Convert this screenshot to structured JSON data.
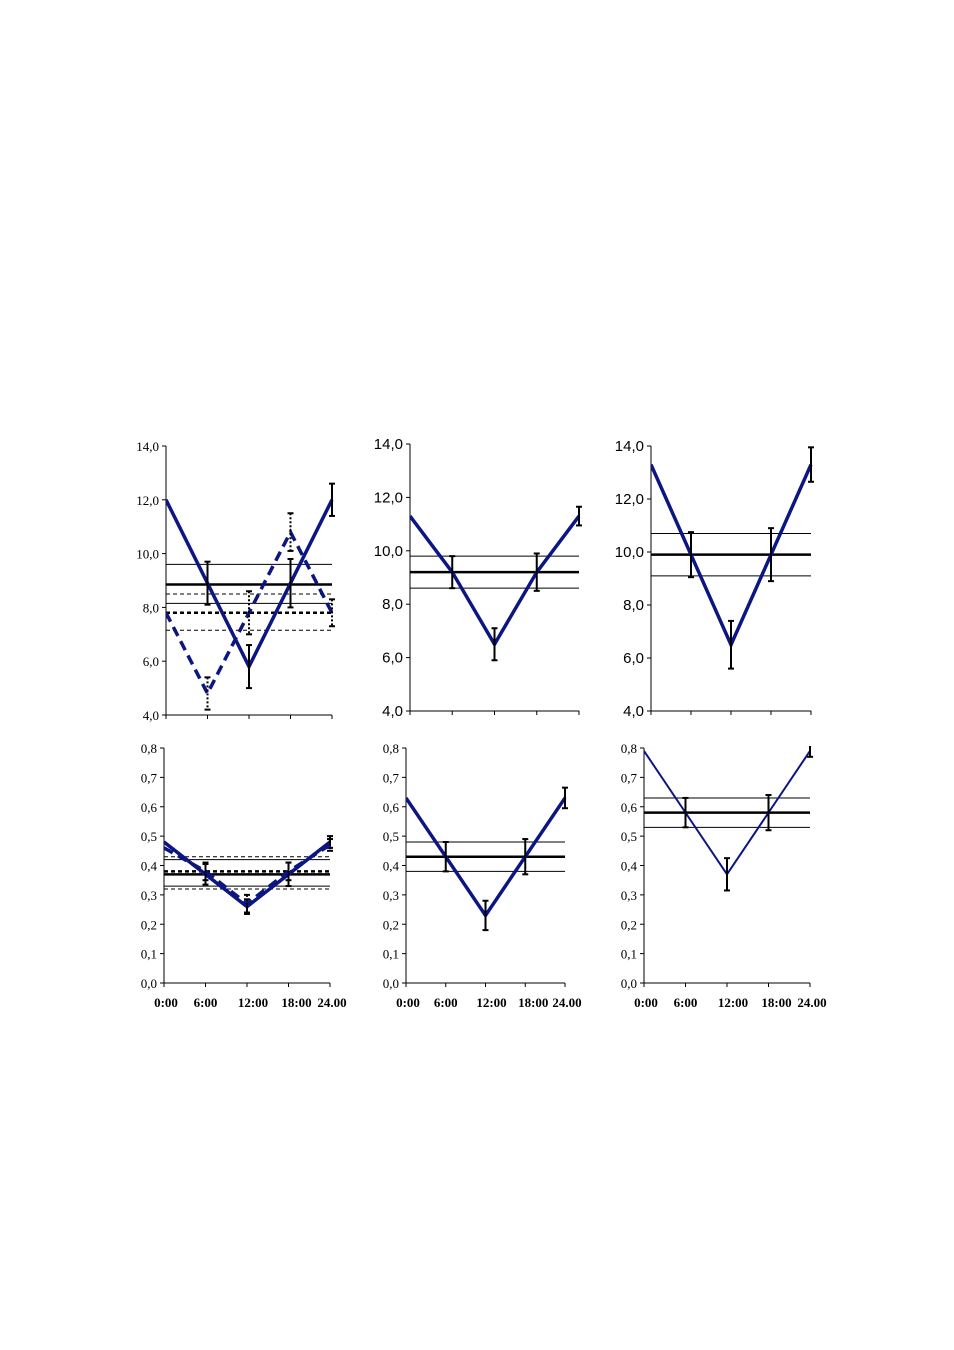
{
  "colors": {
    "series": "#0c1682",
    "reference": "#000000"
  },
  "x_tick_labels": [
    "0:00",
    "6:00",
    "12:00",
    "18:00",
    "24.00"
  ],
  "chart_data": [
    {
      "type": "line",
      "x": [
        0,
        6,
        12,
        18,
        24
      ],
      "ylim": [
        4,
        14
      ],
      "y_ticks": [
        "4,0",
        "6,0",
        "8,0",
        "10,0",
        "12,0",
        "14,0"
      ],
      "series": [
        {
          "style": "solid",
          "values": [
            12.0,
            8.9,
            5.8,
            8.9,
            12.0
          ],
          "error": [
            null,
            0.8,
            0.8,
            0.9,
            0.6
          ]
        },
        {
          "style": "dashed",
          "values": [
            7.8,
            4.8,
            7.8,
            10.8,
            7.8
          ],
          "error": [
            null,
            0.6,
            0.8,
            0.7,
            0.5
          ]
        }
      ],
      "reference_lines": [
        {
          "style": "solid",
          "mesor": 8.85,
          "band": [
            8.15,
            9.6
          ]
        },
        {
          "style": "dashed",
          "mesor": 7.8,
          "band": [
            7.15,
            8.5
          ]
        }
      ]
    },
    {
      "type": "line",
      "x": [
        0,
        6,
        12,
        18,
        24
      ],
      "ylim": [
        4,
        14
      ],
      "y_ticks": [
        "4,0",
        "6,0",
        "8,0",
        "10,0",
        "12,0",
        "14,0"
      ],
      "series": [
        {
          "style": "solid",
          "values": [
            11.3,
            9.2,
            6.5,
            9.2,
            11.3
          ],
          "error": [
            null,
            0.6,
            0.6,
            0.7,
            0.35
          ]
        }
      ],
      "reference_lines": [
        {
          "style": "solid",
          "mesor": 9.2,
          "band": [
            8.6,
            9.8
          ]
        }
      ]
    },
    {
      "type": "line",
      "x": [
        0,
        6,
        12,
        18,
        24
      ],
      "ylim": [
        4,
        14
      ],
      "y_ticks": [
        "4,0",
        "6,0",
        "8,0",
        "10,0",
        "12,0",
        "14,0"
      ],
      "series": [
        {
          "style": "solid",
          "values": [
            13.3,
            9.9,
            6.5,
            9.9,
            13.3
          ],
          "error": [
            null,
            0.85,
            0.9,
            1.0,
            0.65
          ]
        }
      ],
      "reference_lines": [
        {
          "style": "solid",
          "mesor": 9.9,
          "band": [
            9.1,
            10.7
          ]
        }
      ]
    },
    {
      "type": "line",
      "x": [
        0,
        6,
        12,
        18,
        24
      ],
      "ylim": [
        0,
        0.8
      ],
      "y_ticks": [
        "0,0",
        "0,1",
        "0,2",
        "0,3",
        "0,4",
        "0,5",
        "0,6",
        "0,7",
        "0,8"
      ],
      "series": [
        {
          "style": "solid",
          "values": [
            0.48,
            0.37,
            0.26,
            0.37,
            0.48
          ],
          "error": [
            null,
            0.035,
            0.025,
            0.04,
            0.02
          ]
        },
        {
          "style": "dashed",
          "values": [
            0.46,
            0.38,
            0.27,
            0.38,
            0.47
          ],
          "error": [
            null,
            0.03,
            0.03,
            0.03,
            0.02
          ]
        }
      ],
      "reference_lines": [
        {
          "style": "solid",
          "mesor": 0.37,
          "band": [
            0.33,
            0.42
          ]
        },
        {
          "style": "dashed",
          "mesor": 0.38,
          "band": [
            0.32,
            0.43
          ]
        }
      ]
    },
    {
      "type": "line",
      "x": [
        0,
        6,
        12,
        18,
        24
      ],
      "ylim": [
        0,
        0.8
      ],
      "y_ticks": [
        "0,0",
        "0,1",
        "0,2",
        "0,3",
        "0,4",
        "0,5",
        "0,6",
        "0,7",
        "0,8"
      ],
      "series": [
        {
          "style": "solid",
          "values": [
            0.63,
            0.43,
            0.23,
            0.43,
            0.63
          ],
          "error": [
            null,
            0.05,
            0.05,
            0.06,
            0.035
          ]
        }
      ],
      "reference_lines": [
        {
          "style": "solid",
          "mesor": 0.43,
          "band": [
            0.38,
            0.48
          ]
        }
      ]
    },
    {
      "type": "line",
      "x": [
        0,
        6,
        12,
        18,
        24
      ],
      "ylim": [
        0,
        0.8
      ],
      "y_ticks": [
        "0,0",
        "0,1",
        "0,2",
        "0,3",
        "0,4",
        "0,5",
        "0,6",
        "0,7",
        "0,8"
      ],
      "series": [
        {
          "style": "solid",
          "values": [
            0.79,
            0.58,
            0.37,
            0.58,
            0.79
          ],
          "error": [
            null,
            0.05,
            0.055,
            0.06,
            0.02
          ]
        }
      ],
      "reference_lines": [
        {
          "style": "solid",
          "mesor": 0.58,
          "band": [
            0.53,
            0.63
          ]
        }
      ]
    }
  ]
}
